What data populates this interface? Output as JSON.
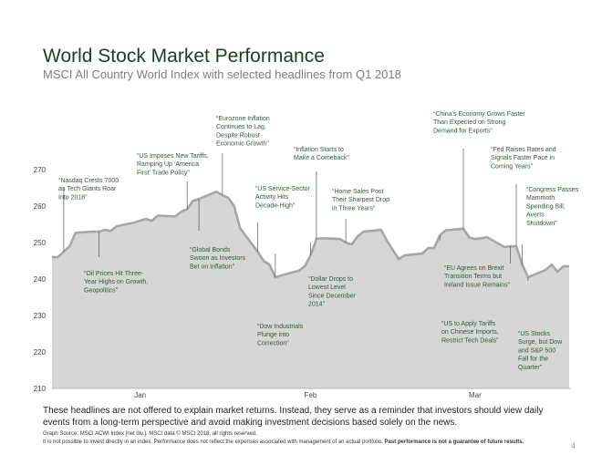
{
  "header": {
    "title": "World Stock Market Performance",
    "subtitle": "MSCI All Country World Index with selected headlines from Q1 2018"
  },
  "colors": {
    "area_fill": "#d6d6d6",
    "area_line": "#a6a6a6",
    "annotation_text": "#2f5a3a",
    "leader_line": "#555555"
  },
  "chart_data": {
    "type": "area",
    "title": "World Stock Market Performance",
    "subtitle": "MSCI All Country World Index with selected headlines from Q1 2018",
    "xlabel": "",
    "ylabel": "",
    "ylim": [
      210,
      275
    ],
    "yticks": [
      "210",
      "220",
      "230",
      "240",
      "250",
      "260",
      "270"
    ],
    "xtick_labels": [
      "Jan",
      "Feb",
      "Mar"
    ],
    "x": [
      "2018-01-01",
      "2018-01-02",
      "2018-01-03",
      "2018-01-04",
      "2018-01-05",
      "2018-01-08",
      "2018-01-09",
      "2018-01-10",
      "2018-01-11",
      "2018-01-12",
      "2018-01-15",
      "2018-01-16",
      "2018-01-17",
      "2018-01-18",
      "2018-01-19",
      "2018-01-22",
      "2018-01-23",
      "2018-01-24",
      "2018-01-25",
      "2018-01-26",
      "2018-01-29",
      "2018-01-30",
      "2018-01-31",
      "2018-02-01",
      "2018-02-02",
      "2018-02-05",
      "2018-02-06",
      "2018-02-07",
      "2018-02-08",
      "2018-02-09",
      "2018-02-12",
      "2018-02-13",
      "2018-02-14",
      "2018-02-15",
      "2018-02-16",
      "2018-02-19",
      "2018-02-20",
      "2018-02-21",
      "2018-02-22",
      "2018-02-23",
      "2018-02-26",
      "2018-02-27",
      "2018-02-28",
      "2018-03-01",
      "2018-03-02",
      "2018-03-05",
      "2018-03-06",
      "2018-03-07",
      "2018-03-08",
      "2018-03-09",
      "2018-03-12",
      "2018-03-13",
      "2018-03-14",
      "2018-03-15",
      "2018-03-16",
      "2018-03-19",
      "2018-03-20",
      "2018-03-21",
      "2018-03-22",
      "2018-03-23",
      "2018-03-26",
      "2018-03-27",
      "2018-03-28",
      "2018-03-29",
      "2018-03-30"
    ],
    "series": [
      {
        "values": [
          246.0,
          246.0,
          247.5,
          249.0,
          252.7,
          253.0,
          253.0,
          253.5,
          253.2,
          254.5,
          255.5,
          256.0,
          256.5,
          256.0,
          257.4,
          257.2,
          258.5,
          259.2,
          261.5,
          262.0,
          264.0,
          263.0,
          262.3,
          260.0,
          254.0,
          247.5,
          245.0,
          244.0,
          240.5,
          241.0,
          242.3,
          243.5,
          246.5,
          251.0,
          251.2,
          251.0,
          250.0,
          249.5,
          251.7,
          253.0,
          253.5,
          250.5,
          248.0,
          245.5,
          246.5,
          247.0,
          248.5,
          248.5,
          252.0,
          253.4,
          253.8,
          251.4,
          251.0,
          251.2,
          251.5,
          248.8,
          249.0,
          249.0,
          244.0,
          240.5,
          242.5,
          244.0,
          242.0,
          243.5,
          243.5
        ]
      }
    ],
    "annotations": [
      {
        "date": "2018-01-03",
        "text": [
          "“Nasdaq Crests 7000",
          "as Tech Giants Roar",
          "Into 2018”"
        ]
      },
      {
        "date": "2018-01-09",
        "text": [
          "“Oil Prices Hit Three-",
          "Year Highs on Growth,",
          "Geopolitics”"
        ]
      },
      {
        "date": "2018-01-24",
        "text": [
          "“US Imposes New Tariffs,",
          "Ramping Up ‘America",
          "First’ Trade Policy”"
        ]
      },
      {
        "date": "2018-01-26",
        "text": [
          "“Global Bonds",
          "Swoon as Investors",
          "Bet on Inflation”"
        ]
      },
      {
        "date": "2018-01-30",
        "text": [
          "“Eurozone Inflation",
          "Continues to Lag,",
          "Despite Robust",
          "Economic Growth”"
        ]
      },
      {
        "date": "2018-02-05",
        "text": [
          "“US Service-Sector",
          "Activity Hits",
          "Decade-High”"
        ]
      },
      {
        "date": "2018-02-08",
        "text": [
          "“Dow Industrials",
          "Plunge into",
          "Correction”"
        ]
      },
      {
        "date": "2018-02-14",
        "text": [
          "“Dollar Drops to",
          "Lowest Level",
          "Since December",
          "2014”"
        ]
      },
      {
        "date": "2018-02-15",
        "text": [
          "“Inflation Starts to",
          "Make a Comeback”"
        ]
      },
      {
        "date": "2018-02-20",
        "text": [
          "“Home Sales Post",
          "Their Sharpest Drop",
          "in Three Years”"
        ]
      },
      {
        "date": "2018-03-08",
        "text": [
          "“EU Agrees on Brexit",
          "Transition Terms but",
          "Ireland Issue Remains”"
        ]
      },
      {
        "date": "2018-03-12",
        "text": [
          "“China’s Economy Grows Faster",
          "Than Expected on Strong",
          "Demand for Exports”"
        ]
      },
      {
        "date": "2018-03-20",
        "text": [
          "“US to Apply Tariffs",
          "on Chinese Imports,",
          "Restrict Tech Deals”"
        ]
      },
      {
        "date": "2018-03-21",
        "text": [
          "“Fed Raises Rates and",
          "Signals Faster Pace in",
          "Coming Years”"
        ]
      },
      {
        "date": "2018-03-22",
        "text": [
          "“Congress Passes",
          "Mammoth",
          "Spending Bill,",
          "Averts",
          "Shutdown”"
        ]
      },
      {
        "date": "2018-03-23",
        "text": [
          "“US Stocks",
          "Surge, but Dow",
          "and S&P 500",
          "Fall for the",
          "Quarter”"
        ]
      }
    ]
  },
  "footer": {
    "disclaimer": "These headlines are not offered to explain market returns. Instead, they serve as a reminder that investors should view daily events from a long-term perspective and avoid making investment decisions based solely on the news.",
    "source": "Graph Source: MSCI ACWI Index [net div.]. MSCI data © MSCI 2018, all rights reserved.",
    "note": "It is not possible to invest directly in an index. Performance does not reflect the expenses associated with management of an actual portfolio.",
    "note_bold": "Past performance is not a guarantee of future results.",
    "page_number": "4"
  }
}
